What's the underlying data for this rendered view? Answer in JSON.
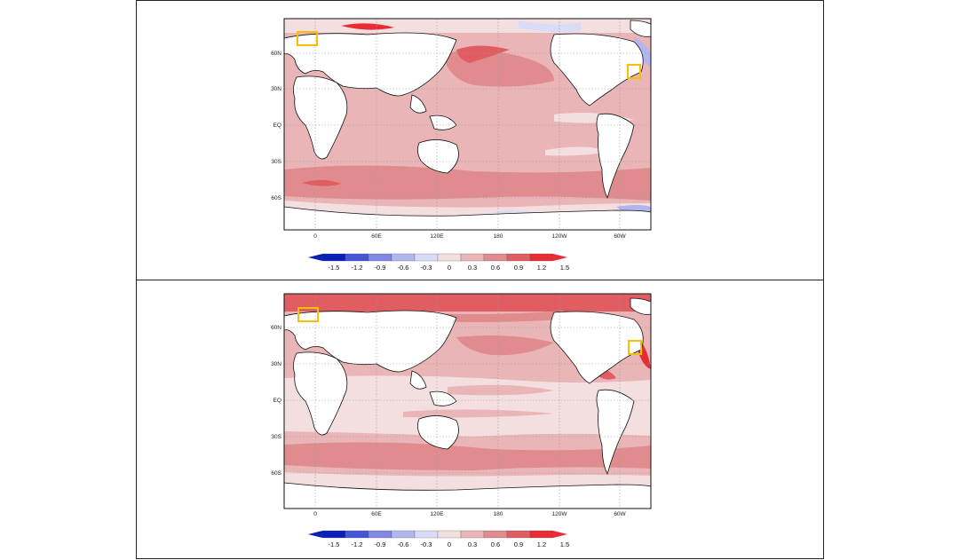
{
  "panels": [
    {
      "id": "top",
      "lat_labels": [
        "60N",
        "30N",
        "EQ",
        "30S",
        "60S"
      ],
      "lon_labels": [
        "0",
        "60E",
        "120E",
        "180",
        "120W",
        "60W"
      ],
      "colorbar_labels": [
        "-1.5",
        "-1.2",
        "-0.9",
        "-0.6",
        "-0.3",
        "0",
        "0.3",
        "0.6",
        "0.9",
        "1.2",
        "1.5"
      ],
      "highlight_boxes": [
        "north-atlantic-box",
        "gulf-stream-box"
      ]
    },
    {
      "id": "bottom",
      "lat_labels": [
        "60N",
        "30N",
        "EQ",
        "30S",
        "60S"
      ],
      "lon_labels": [
        "0",
        "60E",
        "120E",
        "180",
        "120W",
        "60W"
      ],
      "colorbar_labels": [
        "-1.5",
        "-1.2",
        "-0.9",
        "-0.6",
        "-0.3",
        "0",
        "0.3",
        "0.6",
        "0.9",
        "1.2",
        "1.5"
      ],
      "highlight_boxes": [
        "north-atlantic-box",
        "gulf-stream-box"
      ]
    }
  ],
  "colors": {
    "colorbar": [
      "#0a1fb8",
      "#4455d6",
      "#8088e4",
      "#b2b6ee",
      "#d9dcf6",
      "#f4dfe0",
      "#eab5b7",
      "#e08c8f",
      "#e05e62",
      "#e82c33"
    ],
    "land": "#ffffff",
    "coast": "#111111",
    "highlight_box": "#f5c000",
    "grid": "#999999"
  }
}
